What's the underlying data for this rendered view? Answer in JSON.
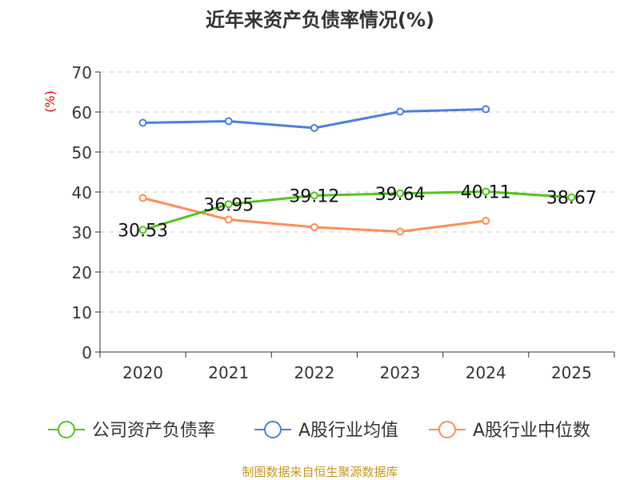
{
  "chart_data": {
    "type": "line",
    "title": "近年来资产负债率情况(%)",
    "ylabel": "(%)",
    "ylim": [
      0,
      70
    ],
    "yticks": [
      0,
      10,
      20,
      30,
      40,
      50,
      60,
      70
    ],
    "categories": [
      "2020",
      "2021",
      "2022",
      "2023",
      "2024",
      "2025"
    ],
    "grid": true,
    "legend_position": "bottom",
    "series": [
      {
        "name": "公司资产负债率",
        "color": "#52c41a",
        "values": [
          30.53,
          36.95,
          39.12,
          39.64,
          40.11,
          38.67
        ],
        "labels": [
          "30.53",
          "36.95",
          "39.12",
          "39.64",
          "40.11",
          "38.67"
        ]
      },
      {
        "name": "A股行业均值",
        "color": "#4a7fe0",
        "values": [
          57.3,
          57.7,
          56.0,
          60.1,
          60.7,
          null
        ]
      },
      {
        "name": "A股行业中位数",
        "color": "#ff8c55",
        "values": [
          38.5,
          33.1,
          31.2,
          30.1,
          32.8,
          null
        ]
      }
    ]
  },
  "source": "制图数据来自恒生聚源数据库"
}
